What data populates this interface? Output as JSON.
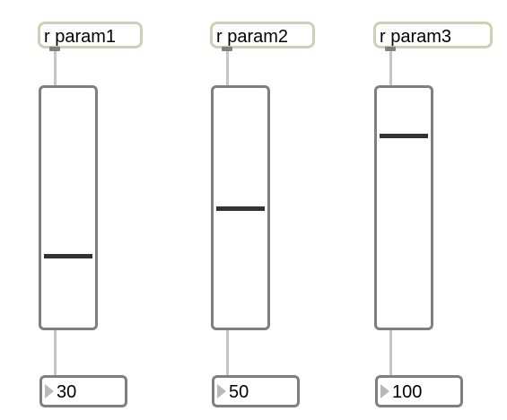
{
  "channels": [
    {
      "receive_label": "r param1",
      "value": "30",
      "slider_fraction": 0.3
    },
    {
      "receive_label": "r param2",
      "value": "50",
      "slider_fraction": 0.5
    },
    {
      "receive_label": "r param3",
      "value": "100",
      "slider_fraction": 0.8
    }
  ]
}
